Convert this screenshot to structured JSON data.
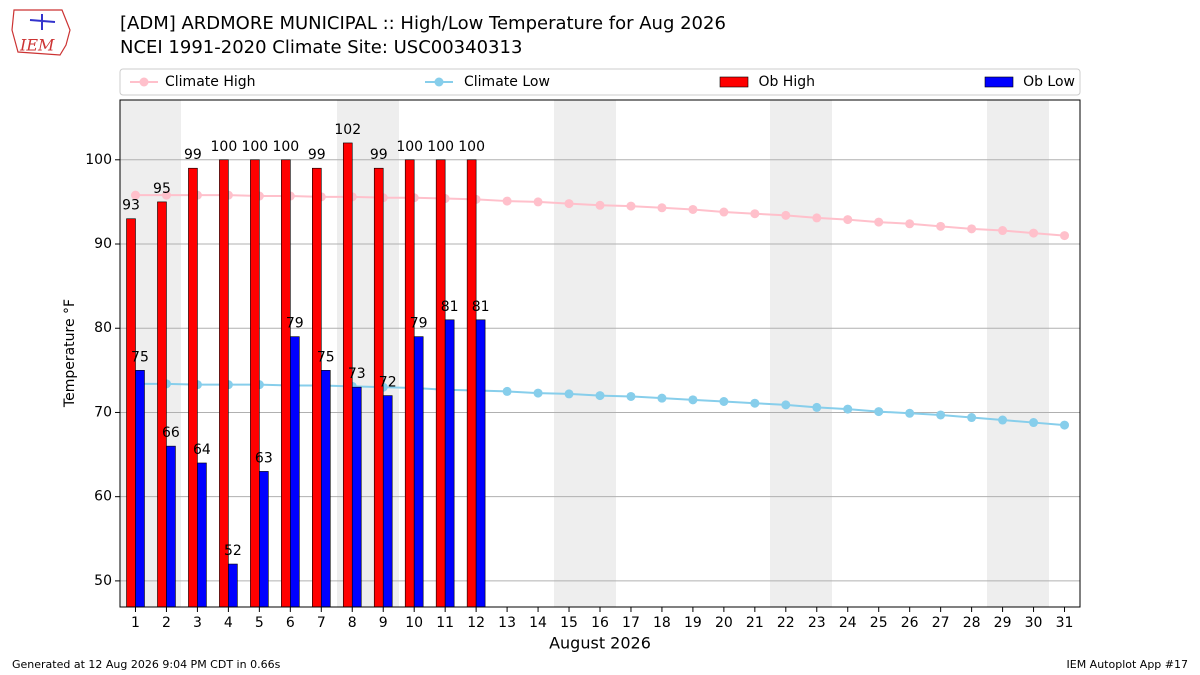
{
  "logo_text": "IEM",
  "chart_data": {
    "type": "bar_line",
    "title": "[ADM] ARDMORE MUNICIPAL :: High/Low Temperature for Aug 2026",
    "subtitle": "NCEI 1991-2020 Climate Site: USC00340313",
    "x_label": "August 2026",
    "y_label": "Temperature °F",
    "footer_left": "Generated at 12 Aug 2026 9:04 PM CDT in 0.66s",
    "footer_right": "IEM Autoplot App #17",
    "x": [
      1,
      2,
      3,
      4,
      5,
      6,
      7,
      8,
      9,
      10,
      11,
      12,
      13,
      14,
      15,
      16,
      17,
      18,
      19,
      20,
      21,
      22,
      23,
      24,
      25,
      26,
      27,
      28,
      29,
      30,
      31
    ],
    "xlim": [
      0.5,
      31.5
    ],
    "xticks": [
      1,
      2,
      3,
      4,
      5,
      6,
      7,
      8,
      9,
      10,
      11,
      12,
      13,
      14,
      15,
      16,
      17,
      18,
      19,
      20,
      21,
      22,
      23,
      24,
      25,
      26,
      27,
      28,
      29,
      30,
      31
    ],
    "ylim": [
      46.9,
      107.1
    ],
    "yticks": [
      50,
      60,
      70,
      80,
      90,
      100
    ],
    "grid": true,
    "series": [
      {
        "name": "Climate High",
        "kind": "line",
        "color": "#ffc0cb",
        "values": [
          95.8,
          95.8,
          95.8,
          95.8,
          95.7,
          95.7,
          95.6,
          95.6,
          95.5,
          95.5,
          95.4,
          95.3,
          95.1,
          95.0,
          94.8,
          94.6,
          94.5,
          94.3,
          94.1,
          93.8,
          93.6,
          93.4,
          93.1,
          92.9,
          92.6,
          92.4,
          92.1,
          91.8,
          91.6,
          91.3,
          91.0
        ]
      },
      {
        "name": "Climate Low",
        "kind": "line",
        "color": "#87ceeb",
        "values": [
          73.4,
          73.4,
          73.3,
          73.3,
          73.3,
          73.2,
          73.2,
          73.1,
          73.0,
          72.9,
          72.7,
          72.6,
          72.5,
          72.3,
          72.2,
          72.0,
          71.9,
          71.7,
          71.5,
          71.3,
          71.1,
          70.9,
          70.6,
          70.4,
          70.1,
          69.9,
          69.7,
          69.4,
          69.1,
          68.8,
          68.5
        ]
      },
      {
        "name": "Ob High",
        "kind": "bar",
        "color": "#ff0000",
        "values": [
          93,
          95,
          99,
          100,
          100,
          100,
          99,
          102,
          99,
          100,
          100,
          100,
          null,
          null,
          null,
          null,
          null,
          null,
          null,
          null,
          null,
          null,
          null,
          null,
          null,
          null,
          null,
          null,
          null,
          null,
          null
        ]
      },
      {
        "name": "Ob Low",
        "kind": "bar",
        "color": "#0000ff",
        "values": [
          75,
          66,
          64,
          52,
          63,
          79,
          75,
          73,
          72,
          79,
          81,
          81,
          null,
          null,
          null,
          null,
          null,
          null,
          null,
          null,
          null,
          null,
          null,
          null,
          null,
          null,
          null,
          null,
          null,
          null,
          null
        ]
      }
    ]
  }
}
